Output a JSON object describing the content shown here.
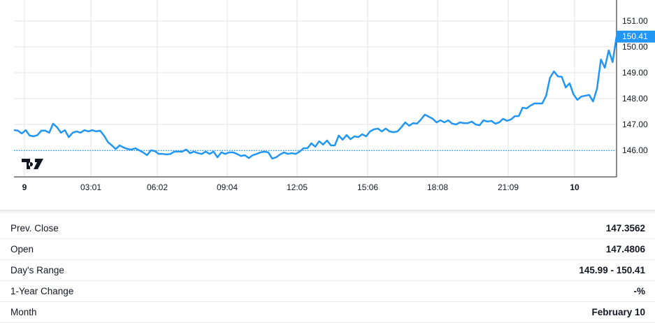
{
  "chart_data": {
    "type": "line",
    "x_tick_labels": [
      "9",
      "03:01",
      "06:02",
      "09:04",
      "12:05",
      "15:06",
      "18:08",
      "21:09",
      "10"
    ],
    "y_tick_labels": [
      "151.00",
      "150.00",
      "149.00",
      "148.00",
      "147.00",
      "146.00"
    ],
    "ylim": [
      145.0,
      151.8
    ],
    "grid": true,
    "last_value_label": "150.41",
    "reference_line": 145.99,
    "line_color": "#2196f3",
    "series": [
      {
        "values": [
          146.78,
          146.76,
          146.65,
          146.78,
          146.57,
          146.54,
          146.59,
          146.76,
          146.76,
          146.68,
          147.03,
          146.89,
          146.68,
          146.78,
          146.51,
          146.68,
          146.73,
          146.68,
          146.78,
          146.73,
          146.78,
          146.73,
          146.76,
          146.57,
          146.32,
          146.19,
          146.05,
          146.19,
          146.11,
          146.05,
          146.03,
          146.08,
          146.0,
          145.92,
          145.81,
          146.0,
          145.97,
          145.86,
          145.86,
          145.84,
          145.86,
          145.95,
          145.95,
          145.95,
          146.03,
          145.89,
          145.95,
          145.89,
          145.86,
          145.95,
          145.86,
          145.95,
          145.73,
          145.92,
          145.86,
          145.92,
          145.92,
          145.86,
          145.78,
          145.81,
          145.7,
          145.81,
          145.86,
          145.92,
          145.95,
          145.92,
          145.68,
          145.73,
          145.84,
          145.92,
          145.86,
          145.89,
          145.86,
          145.95,
          146.08,
          146.08,
          146.27,
          146.14,
          146.35,
          146.22,
          146.38,
          146.19,
          146.19,
          146.57,
          146.41,
          146.59,
          146.43,
          146.54,
          146.51,
          146.62,
          146.54,
          146.73,
          146.81,
          146.84,
          146.73,
          146.84,
          146.73,
          146.7,
          146.73,
          146.89,
          147.08,
          146.95,
          147.05,
          147.03,
          147.19,
          147.38,
          147.3,
          147.22,
          147.08,
          147.16,
          147.08,
          147.16,
          147.03,
          147.0,
          147.08,
          147.05,
          147.05,
          147.11,
          147.0,
          146.97,
          147.16,
          147.11,
          147.14,
          147.03,
          147.08,
          147.22,
          147.14,
          147.19,
          147.32,
          147.32,
          147.65,
          147.62,
          147.73,
          147.81,
          147.81,
          147.81,
          148.11,
          148.81,
          149.05,
          148.86,
          148.84,
          148.43,
          148.59,
          148.16,
          147.95,
          148.08,
          148.11,
          148.14,
          147.89,
          148.38,
          149.51,
          149.19,
          149.86,
          149.41,
          150.41
        ]
      }
    ]
  },
  "stats": [
    {
      "label": "Prev. Close",
      "value": "147.3562"
    },
    {
      "label": "Open",
      "value": "147.4806"
    },
    {
      "label": "Day's Range",
      "value": "145.99 - 150.41"
    },
    {
      "label": "1-Year Change",
      "value": "-%"
    },
    {
      "label": "Month",
      "value": "February 10"
    }
  ]
}
